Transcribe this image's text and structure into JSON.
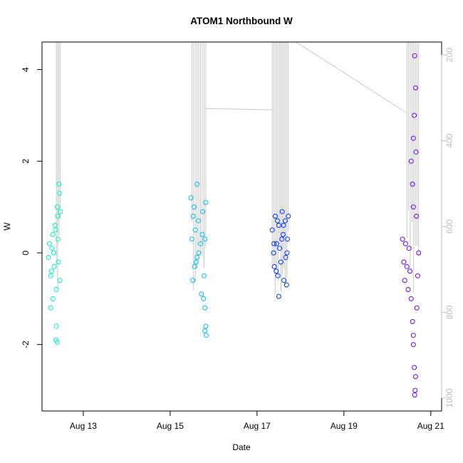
{
  "chart_data": {
    "type": "scatter",
    "title": "ATOM1 Northbound W",
    "xlabel": "Date",
    "ylabel": "W",
    "x_axis": {
      "range": [
        12.05,
        21.25
      ],
      "ticks": [
        {
          "value": 13,
          "label": "Aug 13"
        },
        {
          "value": 15,
          "label": "Aug 15"
        },
        {
          "value": 17,
          "label": "Aug 17"
        },
        {
          "value": 19,
          "label": "Aug 19"
        },
        {
          "value": 21,
          "label": "Aug 21"
        }
      ]
    },
    "y_axis": {
      "range": [
        -3.45,
        4.6
      ],
      "ticks": [
        {
          "value": -2,
          "label": "-2"
        },
        {
          "value": 0,
          "label": "0"
        },
        {
          "value": 2,
          "label": "2"
        },
        {
          "value": 4,
          "label": "4"
        }
      ]
    },
    "y2_axis": {
      "note": "depth axis, inverted, drawn in light gray",
      "range": [
        1030,
        170
      ],
      "ticks": [
        {
          "value": 200,
          "label": "200"
        },
        {
          "value": 400,
          "label": "400"
        },
        {
          "value": 600,
          "label": "600"
        },
        {
          "value": 800,
          "label": "800"
        },
        {
          "value": 1000,
          "label": "1000"
        }
      ]
    },
    "grid": false,
    "legend": "none",
    "series": [
      {
        "color": "#00f5c8",
        "points": [
          [
            12.2,
            -0.1
          ],
          [
            12.22,
            0.2
          ],
          [
            12.25,
            -0.5
          ],
          [
            12.28,
            0.1
          ],
          [
            12.3,
            0.4
          ],
          [
            12.33,
            -0.3
          ],
          [
            12.35,
            0.6
          ],
          [
            12.38,
            -0.8
          ],
          [
            12.4,
            1.0
          ],
          [
            12.42,
            0.3
          ],
          [
            12.45,
            1.3
          ],
          [
            12.46,
            -0.6
          ],
          [
            12.25,
            -1.2
          ],
          [
            12.3,
            -1.0
          ],
          [
            12.38,
            -1.6
          ],
          [
            12.37,
            -1.9
          ],
          [
            12.4,
            -1.95
          ],
          [
            12.44,
            1.5
          ],
          [
            12.41,
            0.8
          ],
          [
            12.27,
            -0.4
          ],
          [
            12.32,
            0.0
          ],
          [
            12.36,
            0.5
          ],
          [
            12.43,
            -0.2
          ],
          [
            12.47,
            0.9
          ]
        ]
      },
      {
        "color": "#00bfff",
        "points": [
          [
            15.48,
            1.2
          ],
          [
            15.5,
            0.3
          ],
          [
            15.52,
            -0.6
          ],
          [
            15.55,
            1.0
          ],
          [
            15.58,
            0.5
          ],
          [
            15.6,
            -0.2
          ],
          [
            15.62,
            1.5
          ],
          [
            15.65,
            0.7
          ],
          [
            15.7,
            0.2
          ],
          [
            15.72,
            -0.9
          ],
          [
            15.75,
            0.9
          ],
          [
            15.78,
            -0.5
          ],
          [
            15.8,
            0.3
          ],
          [
            15.82,
            1.1
          ],
          [
            15.77,
            -1.0
          ],
          [
            15.8,
            -1.2
          ],
          [
            15.82,
            -1.6
          ],
          [
            15.8,
            -1.7
          ],
          [
            15.83,
            -1.8
          ],
          [
            15.66,
            0.0
          ],
          [
            15.56,
            -0.3
          ],
          [
            15.74,
            0.4
          ],
          [
            15.62,
            -0.1
          ],
          [
            15.53,
            0.8
          ]
        ]
      },
      {
        "color": "#0033ff",
        "points": [
          [
            17.35,
            0.5
          ],
          [
            17.38,
            0.0
          ],
          [
            17.4,
            -0.3
          ],
          [
            17.42,
            0.8
          ],
          [
            17.45,
            0.2
          ],
          [
            17.48,
            -0.5
          ],
          [
            17.5,
            0.6
          ],
          [
            17.52,
            0.1
          ],
          [
            17.55,
            -0.2
          ],
          [
            17.58,
            0.9
          ],
          [
            17.6,
            0.4
          ],
          [
            17.62,
            -0.6
          ],
          [
            17.65,
            0.7
          ],
          [
            17.68,
            -0.7
          ],
          [
            17.7,
            0.3
          ],
          [
            17.72,
            0.8
          ],
          [
            17.5,
            -0.95
          ],
          [
            17.44,
            -0.4
          ],
          [
            17.57,
            0.3
          ],
          [
            17.66,
            -0.1
          ],
          [
            17.39,
            0.2
          ],
          [
            17.61,
            0.6
          ],
          [
            17.47,
            0.7
          ],
          [
            17.69,
            0.0
          ]
        ]
      },
      {
        "color": "#6a00ff",
        "points": [
          [
            20.35,
            0.3
          ],
          [
            20.38,
            -0.2
          ],
          [
            20.4,
            -0.6
          ],
          [
            20.42,
            0.2
          ],
          [
            20.45,
            -0.3
          ],
          [
            20.48,
            -0.8
          ],
          [
            20.5,
            0.1
          ],
          [
            20.52,
            -0.4
          ],
          [
            20.55,
            -1.0
          ],
          [
            20.58,
            -1.5
          ],
          [
            20.6,
            -2.0
          ],
          [
            20.62,
            -2.5
          ],
          [
            20.63,
            -3.1
          ],
          [
            20.65,
            -2.7
          ],
          [
            20.6,
            -1.8
          ],
          [
            20.55,
            2.0
          ],
          [
            20.6,
            2.5
          ],
          [
            20.62,
            3.0
          ],
          [
            20.65,
            3.6
          ],
          [
            20.63,
            4.3
          ],
          [
            20.58,
            1.5
          ],
          [
            20.67,
            0.8
          ],
          [
            20.7,
            -0.5
          ],
          [
            20.72,
            0.0
          ],
          [
            20.68,
            -1.2
          ],
          [
            20.6,
            1.0
          ],
          [
            20.64,
            -3.0
          ],
          [
            20.66,
            2.2
          ]
        ]
      }
    ]
  }
}
